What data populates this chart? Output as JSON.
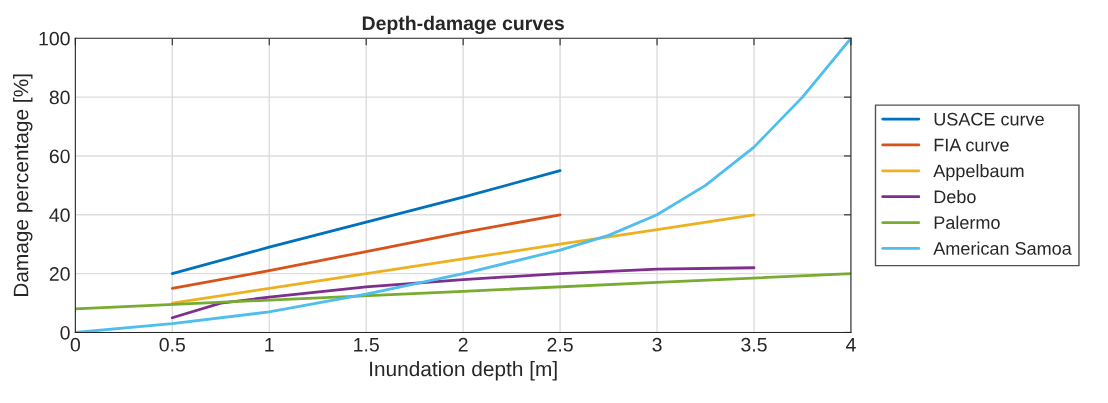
{
  "chart_data": {
    "type": "line",
    "title": "Depth-damage curves",
    "xlabel": "Inundation depth [m]",
    "ylabel": "Damage percentage [%]",
    "series": [
      {
        "name": "USACE curve",
        "color": "#0072bd",
        "x": [
          0.5,
          1,
          1.5,
          2,
          2.5
        ],
        "values": [
          20,
          29,
          37.5,
          46,
          55
        ]
      },
      {
        "name": "FIA curve",
        "color": "#d95319",
        "x": [
          0.5,
          1,
          1.5,
          2,
          2.5
        ],
        "values": [
          15,
          21,
          27.5,
          34,
          40
        ]
      },
      {
        "name": "Appelbaum",
        "color": "#edb120",
        "x": [
          0.5,
          1,
          1.5,
          2,
          2.5,
          3,
          3.5
        ],
        "values": [
          10,
          15,
          20,
          25,
          30,
          35,
          40
        ]
      },
      {
        "name": "Debo",
        "color": "#7e2f8e",
        "x": [
          0.5,
          0.75,
          1,
          1.5,
          2,
          2.5,
          3,
          3.5
        ],
        "values": [
          5,
          10,
          12,
          15.5,
          18,
          20,
          21.5,
          22
        ]
      },
      {
        "name": "Palermo",
        "color": "#77ac30",
        "x": [
          0,
          1,
          2,
          3,
          4
        ],
        "values": [
          8,
          11,
          14,
          17,
          20
        ]
      },
      {
        "name": "American Samoa",
        "color": "#4dbeee",
        "x": [
          0,
          0.5,
          1,
          1.5,
          2,
          2.5,
          2.75,
          3,
          3.25,
          3.5,
          3.75,
          4
        ],
        "values": [
          0,
          3,
          7,
          13,
          20,
          28,
          33,
          40,
          50,
          63,
          80,
          100
        ]
      }
    ],
    "xlim": [
      0,
      4
    ],
    "ylim": [
      0,
      100
    ],
    "xticks": [
      0,
      0.5,
      1,
      1.5,
      2,
      2.5,
      3,
      3.5,
      4
    ],
    "yticks": [
      0,
      20,
      40,
      60,
      80,
      100
    ],
    "grid": true,
    "legend": "right",
    "marker": "none",
    "line_style": "solid"
  }
}
